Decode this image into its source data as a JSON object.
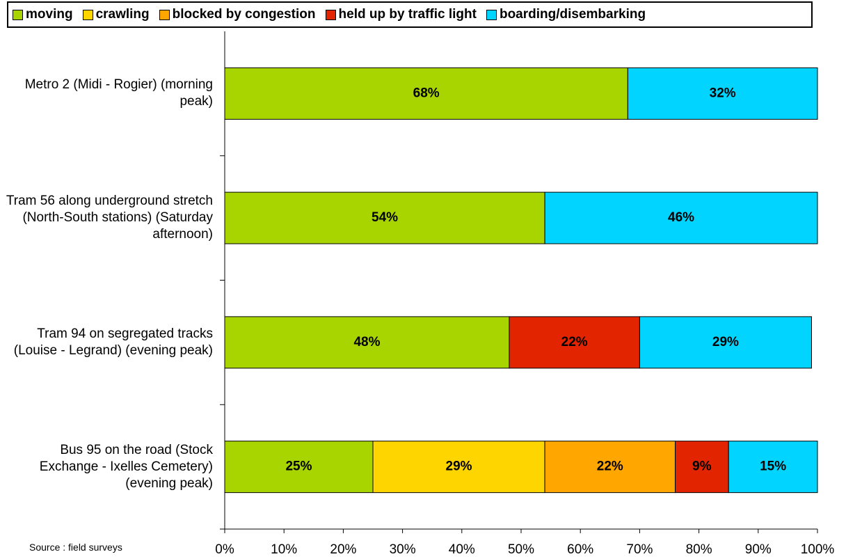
{
  "chart_data": {
    "type": "stacked_barh",
    "categories": [
      "Metro 2 (Midi - Rogier) (morning peak)",
      "Tram 56 along underground stretch (North-South stations) (Saturday afternoon)",
      "Tram 94 on segregated tracks (Louise - Legrand) (evening peak)",
      "Bus 95 on the road (Stock Exchange - Ixelles Cemetery) (evening peak)"
    ],
    "series": [
      {
        "name": "moving",
        "color": "#a8d400",
        "values": [
          68,
          54,
          48,
          25
        ],
        "value_labels": [
          "68%",
          "54%",
          "48%",
          "25%"
        ]
      },
      {
        "name": "crawling",
        "color": "#ffd500",
        "values": [
          null,
          null,
          null,
          29
        ],
        "value_labels": [
          null,
          null,
          null,
          "29%"
        ]
      },
      {
        "name": "blocked by congestion",
        "color": "#ffa600",
        "values": [
          null,
          null,
          0,
          22
        ],
        "value_labels": [
          null,
          null,
          "0%",
          "22%"
        ]
      },
      {
        "name": "held up by traffic light",
        "color": "#e32400",
        "values": [
          0,
          0,
          22,
          9
        ],
        "value_labels": [
          "0%",
          "0%",
          "22%",
          "9%"
        ]
      },
      {
        "name": "boarding/disembarking",
        "color": "#00d4ff",
        "values": [
          32,
          46,
          29,
          15
        ],
        "value_labels": [
          "32%",
          "46%",
          "29%",
          "15%"
        ]
      }
    ],
    "xlim": [
      0,
      100
    ],
    "xticks": [
      {
        "value": 0,
        "label": "0%"
      },
      {
        "value": 10,
        "label": "10%"
      },
      {
        "value": 20,
        "label": "20%"
      },
      {
        "value": 30,
        "label": "30%"
      },
      {
        "value": 40,
        "label": "40%"
      },
      {
        "value": 50,
        "label": "50%"
      },
      {
        "value": 60,
        "label": "60%"
      },
      {
        "value": 70,
        "label": "70%"
      },
      {
        "value": 80,
        "label": "80%"
      },
      {
        "value": 90,
        "label": "90%"
      },
      {
        "value": 100,
        "label": "100%"
      }
    ],
    "note": "Source : field surveys"
  }
}
